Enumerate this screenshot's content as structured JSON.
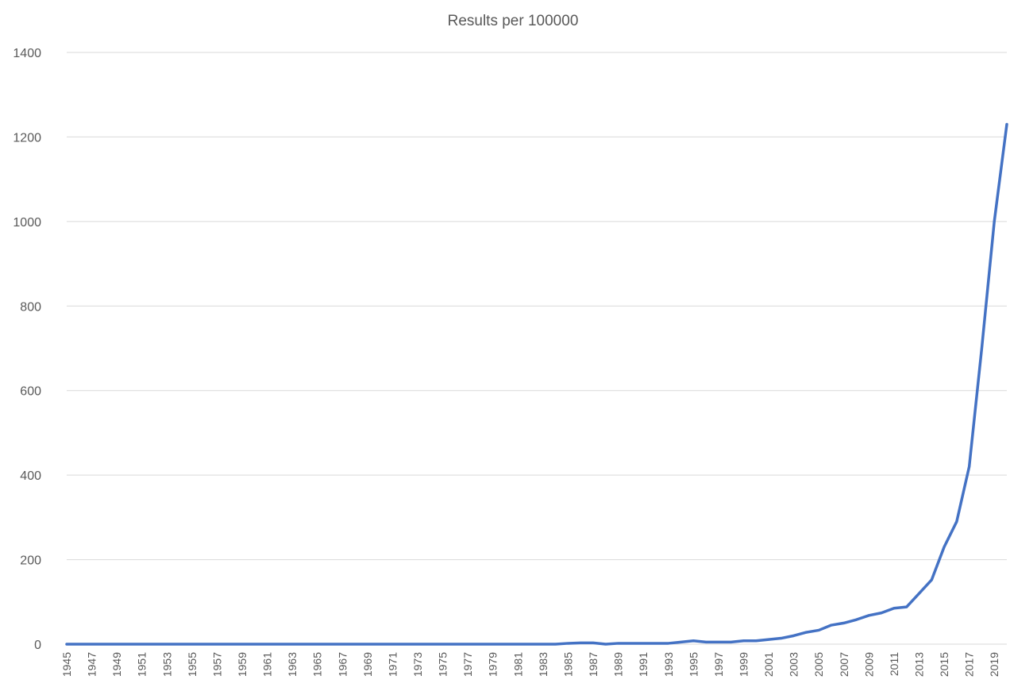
{
  "chart_data": {
    "type": "line",
    "title": "Results per 100000",
    "xlabel": "",
    "ylabel": "",
    "ylim": [
      0,
      1400
    ],
    "yticks": [
      0,
      200,
      400,
      600,
      800,
      1000,
      1200,
      1400
    ],
    "grid": true,
    "legend": "none",
    "x": [
      1945,
      1946,
      1947,
      1948,
      1949,
      1950,
      1951,
      1952,
      1953,
      1954,
      1955,
      1956,
      1957,
      1958,
      1959,
      1960,
      1961,
      1962,
      1963,
      1964,
      1965,
      1966,
      1967,
      1968,
      1969,
      1970,
      1971,
      1972,
      1973,
      1974,
      1975,
      1976,
      1977,
      1978,
      1979,
      1980,
      1981,
      1982,
      1983,
      1984,
      1985,
      1986,
      1987,
      1988,
      1989,
      1990,
      1991,
      1992,
      1993,
      1994,
      1995,
      1996,
      1997,
      1998,
      1999,
      2000,
      2001,
      2002,
      2003,
      2004,
      2005,
      2006,
      2007,
      2008,
      2009,
      2010,
      2011,
      2012,
      2013,
      2014,
      2015,
      2016,
      2017,
      2018,
      2019,
      2020
    ],
    "xtick_labels": [
      "1945",
      "1947",
      "1949",
      "1951",
      "1953",
      "1955",
      "1957",
      "1959",
      "1961",
      "1963",
      "1965",
      "1967",
      "1969",
      "1971",
      "1973",
      "1975",
      "1977",
      "1979",
      "1981",
      "1983",
      "1985",
      "1987",
      "1989",
      "1991",
      "1993",
      "1995",
      "1997",
      "1999",
      "2001",
      "2003",
      "2005",
      "2007",
      "2009",
      "2011",
      "2013",
      "2015",
      "2017",
      "2019"
    ],
    "series": [
      {
        "color": "#4472c4",
        "values": [
          0,
          0,
          0,
          0,
          0,
          0,
          0,
          0,
          0,
          0,
          0,
          0,
          0,
          0,
          0,
          0,
          0,
          0,
          0,
          0,
          0,
          0,
          0,
          0,
          0,
          0,
          0,
          0,
          0,
          0,
          0,
          0,
          0,
          0,
          0,
          0,
          0,
          0,
          0,
          0,
          2,
          3,
          3,
          0,
          2,
          2,
          2,
          2,
          2,
          5,
          8,
          5,
          5,
          5,
          8,
          8,
          11,
          14,
          20,
          28,
          33,
          45,
          50,
          58,
          68,
          74,
          85,
          88,
          120,
          152,
          230,
          290,
          420,
          700,
          1000,
          1230
        ]
      }
    ]
  }
}
